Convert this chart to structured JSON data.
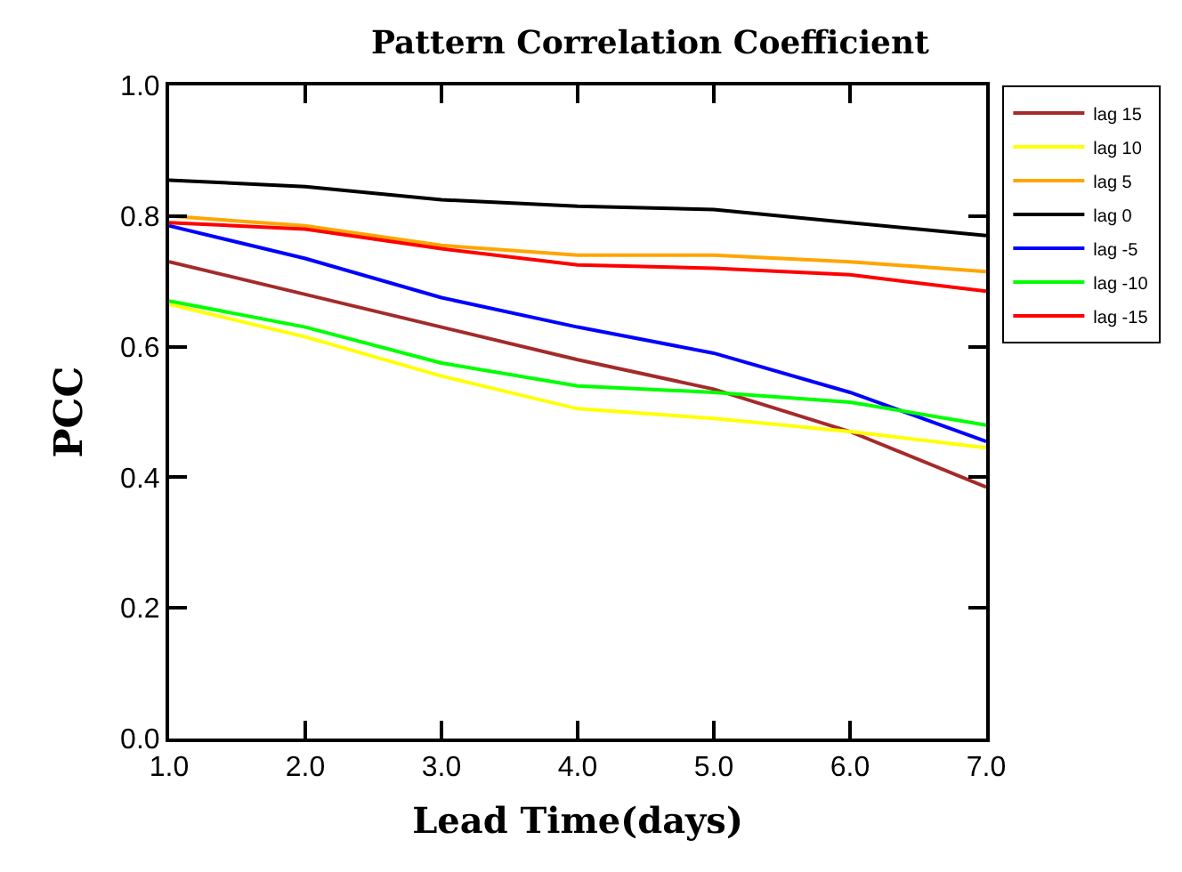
{
  "chart_data": {
    "type": "line",
    "title": "Pattern Correlation Coefficient",
    "xlabel": "Lead Time(days)",
    "ylabel": "PCC",
    "x": [
      1,
      2,
      3,
      4,
      5,
      6,
      7
    ],
    "series": [
      {
        "name": "lag 15",
        "color": "#a52a2a",
        "values": [
          0.73,
          0.68,
          0.63,
          0.58,
          0.535,
          0.47,
          0.385
        ]
      },
      {
        "name": "lag 10",
        "color": "#ffff00",
        "values": [
          0.665,
          0.615,
          0.555,
          0.505,
          0.49,
          0.47,
          0.445
        ]
      },
      {
        "name": "lag 5",
        "color": "#ffa500",
        "values": [
          0.8,
          0.785,
          0.755,
          0.74,
          0.74,
          0.73,
          0.715
        ]
      },
      {
        "name": "lag 0",
        "color": "#000000",
        "values": [
          0.855,
          0.845,
          0.825,
          0.815,
          0.81,
          0.79,
          0.77
        ]
      },
      {
        "name": "lag -5",
        "color": "#0000ff",
        "values": [
          0.785,
          0.735,
          0.675,
          0.63,
          0.59,
          0.53,
          0.455
        ]
      },
      {
        "name": "lag -10",
        "color": "#00ff00",
        "values": [
          0.67,
          0.63,
          0.575,
          0.54,
          0.53,
          0.515,
          0.48
        ]
      },
      {
        "name": "lag -15",
        "color": "#ff0000",
        "values": [
          0.79,
          0.78,
          0.75,
          0.725,
          0.72,
          0.71,
          0.685
        ]
      }
    ],
    "xlim": [
      1,
      7
    ],
    "xticks": [
      {
        "value": 1,
        "label": "1.0"
      },
      {
        "value": 2,
        "label": "2.0"
      },
      {
        "value": 3,
        "label": "3.0"
      },
      {
        "value": 4,
        "label": "4.0"
      },
      {
        "value": 5,
        "label": "5.0"
      },
      {
        "value": 6,
        "label": "6.0"
      },
      {
        "value": 7,
        "label": "7.0"
      }
    ],
    "ylim": [
      0,
      1
    ],
    "yticks": [
      {
        "value": 0,
        "label": "0.0"
      },
      0.2,
      0.4,
      0.6,
      0.8,
      {
        "value": 1,
        "label": "1.0"
      }
    ],
    "legend": "top right",
    "marker": "none",
    "line_style": "solid"
  }
}
